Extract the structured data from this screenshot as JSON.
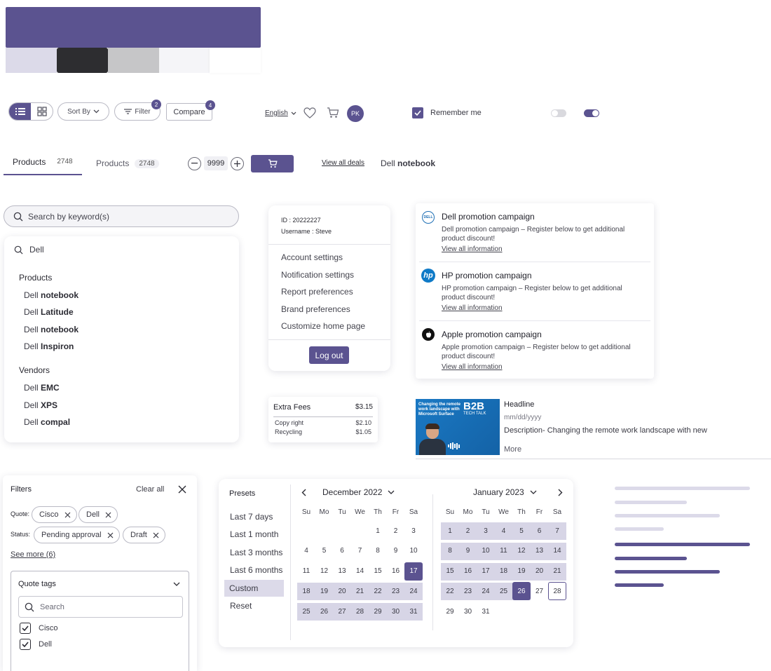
{
  "palette": {
    "primary": "#5b5390",
    "light": "#dcdae9",
    "dark": "#2d2d30",
    "grey": "#c6c6c8",
    "offwhite": "#f5f5f8",
    "white": "#ffffff"
  },
  "toolbar": {
    "sort_label": "Sort By",
    "filter_label": "Filter",
    "filter_count": "2",
    "compare_label": "Compare",
    "compare_count": "4",
    "language": "English",
    "avatar_initials": "PK",
    "remember_label": "Remember me",
    "remember_checked": true,
    "toggle_off": false,
    "toggle_on": true
  },
  "tabs": {
    "tab1_label": "Products",
    "tab1_count": "2748",
    "tab2_label": "Products",
    "tab2_count": "2748"
  },
  "quantity": {
    "value": "9999"
  },
  "deals_link": "View all deals",
  "breadcrumb": {
    "prefix": "Dell",
    "bold": "notebook"
  },
  "search": {
    "placeholder": "Search by keyword(s)",
    "query": "Dell",
    "products_heading": "Products",
    "products": [
      {
        "prefix": "Dell",
        "bold": "notebook"
      },
      {
        "prefix": "Dell",
        "bold": "Latitude"
      },
      {
        "prefix": "Dell",
        "bold": "notebook"
      },
      {
        "prefix": "Dell",
        "bold": "Inspiron"
      }
    ],
    "vendors_heading": "Vendors",
    "vendors": [
      {
        "prefix": "Dell",
        "bold": "EMC"
      },
      {
        "prefix": "Dell",
        "bold": "XPS"
      },
      {
        "prefix": "Dell",
        "bold": "compal"
      }
    ]
  },
  "account": {
    "id_label": "ID :",
    "id_value": "20222227",
    "username_label": "Username  :",
    "username_value": "Steve",
    "items": [
      "Account settings",
      "Notification settings",
      "Report preferences",
      "Brand preferences",
      "Customize home page"
    ],
    "logout": "Log out"
  },
  "fees": {
    "title": "Extra Fees",
    "total": "$3.15",
    "rows": [
      {
        "label": "Copy right",
        "value": "$2.10"
      },
      {
        "label": "Recycling",
        "value": "$1.05"
      }
    ]
  },
  "promotions": [
    {
      "logo": "dell-logo",
      "logo_text": "DELL",
      "title": "Dell promotion campaign",
      "desc": "Dell promotion campaign – Register below to get additional product discount!",
      "link": "View all information"
    },
    {
      "logo": "hp-logo",
      "logo_text": "hp",
      "title": "HP promotion campaign",
      "desc": "HP promotion campaign – Register below to get additional product discount!",
      "link": "View all information"
    },
    {
      "logo": "apple-logo",
      "logo_text": "",
      "title": "Apple promotion campaign",
      "desc": "Apple promotion campaign – Register below to get additional product discount!",
      "link": "View all information"
    }
  ],
  "article": {
    "thumb_line1": "Changing the remote",
    "thumb_line2": "work landscape with",
    "thumb_line3": "Microsoft Surface",
    "thumb_brand": "B2B",
    "thumb_sub": "TECH TALK",
    "headline": "Headline",
    "date": "mm/dd/yyyy",
    "description": "Description- Changing the remote work landscape with new",
    "more": "More"
  },
  "filters": {
    "title": "Filters",
    "clear_all": "Clear all",
    "quote_label": "Quote:",
    "quote_chips": [
      "Cisco",
      "Dell"
    ],
    "status_label": "Status:",
    "status_chips": [
      "Pending approval",
      "Draft"
    ],
    "see_more": "See more (6)",
    "tags_title": "Quote tags",
    "tags_search_placeholder": "Search",
    "tags": [
      {
        "label": "Cisco",
        "checked": true
      },
      {
        "label": "Dell",
        "checked": true
      }
    ]
  },
  "calendar": {
    "presets_title": "Presets",
    "presets": [
      "Last 7 days",
      "Last 1 month",
      "Last 3 months",
      "Last 6 months",
      "Custom",
      "Reset"
    ],
    "active_preset": "Custom",
    "weekdays": [
      "Su",
      "Mo",
      "Tu",
      "We",
      "Th",
      "Fr",
      "Sa"
    ],
    "month1": {
      "label": "December 2022",
      "first_weekday": 4,
      "days": 31,
      "range_from": 17,
      "range_to": 31,
      "selected": 17
    },
    "month2": {
      "label": "January 2023",
      "first_weekday": 0,
      "days": 31,
      "range_from": 1,
      "range_to": 26,
      "selected": 26,
      "today": 28
    }
  }
}
